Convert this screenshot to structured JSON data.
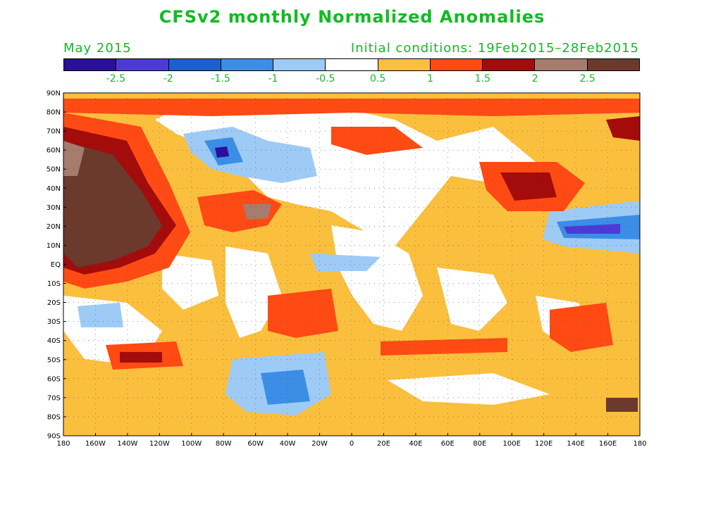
{
  "title": "CFSv2 monthly Normalized Anomalies",
  "month": "May 2015",
  "initial_conditions": "Initial conditions: 19Feb2015–28Feb2015",
  "colorbar": {
    "colors": [
      "#2a0f9c",
      "#4d3ad6",
      "#1e5fd0",
      "#3b8de6",
      "#9dcbf5",
      "#ffffff",
      "#fbbf3e",
      "#ff4a14",
      "#a40b0b",
      "#a57c6e",
      "#6b3a2c"
    ],
    "labels": [
      "-2.5",
      "-2",
      "-1.5",
      "-1",
      "-0.5",
      "0.5",
      "1",
      "1.5",
      "2",
      "2.5"
    ]
  },
  "lat_labels": [
    "90N",
    "80N",
    "70N",
    "60N",
    "50N",
    "40N",
    "30N",
    "20N",
    "10N",
    "EQ",
    "10S",
    "20S",
    "30S",
    "40S",
    "50S",
    "60S",
    "70S",
    "80S",
    "90S"
  ],
  "lon_labels": [
    "180",
    "160W",
    "140W",
    "120W",
    "100W",
    "80W",
    "60W",
    "40W",
    "20W",
    "0",
    "20E",
    "40E",
    "60E",
    "80E",
    "100E",
    "120E",
    "140E",
    "160E",
    "180"
  ]
}
